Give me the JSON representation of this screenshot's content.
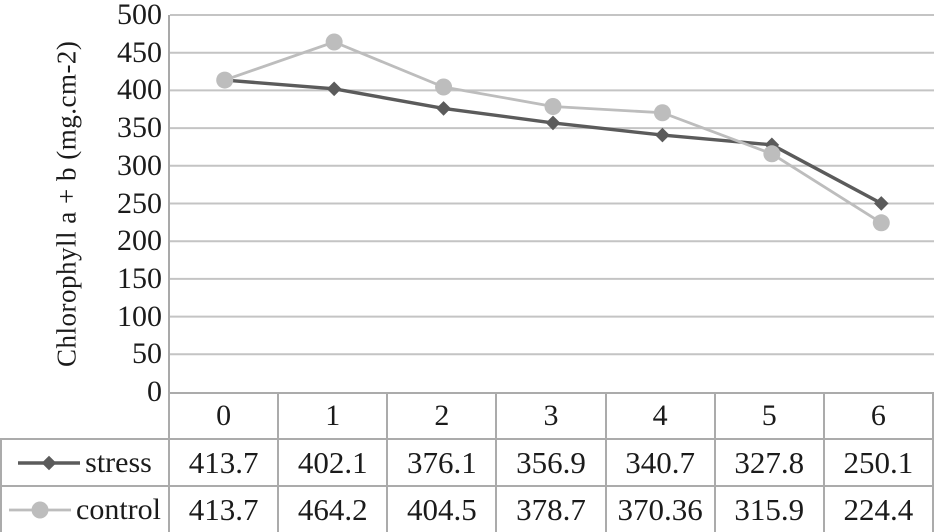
{
  "chart_data": {
    "type": "line",
    "title": "",
    "xlabel": "",
    "ylabel": "Chlorophyll a + b (mg.cm-2)",
    "ylim": [
      0,
      500
    ],
    "ytick_step": 50,
    "yticks": [
      500,
      450,
      400,
      350,
      300,
      250,
      200,
      150,
      100,
      50,
      0
    ],
    "grid": "horizontal",
    "legend_position": "table-left",
    "categories": [
      "0",
      "1",
      "2",
      "3",
      "4",
      "5",
      "6"
    ],
    "series": [
      {
        "name": "stress",
        "values": [
          413.7,
          402.1,
          376.1,
          356.9,
          340.7,
          327.8,
          250.1
        ],
        "display_values": [
          "413.7",
          "402.1",
          "376.1",
          "356.9",
          "340.7",
          "327.8",
          "250.1"
        ],
        "color": "#5b5b5b",
        "marker": "diamond",
        "line_width": 3.4
      },
      {
        "name": "control",
        "values": [
          413.7,
          464.2,
          404.5,
          378.7,
          370.36,
          315.9,
          224.4
        ],
        "display_values": [
          "413.7",
          "464.2",
          "404.5",
          "378.7",
          "370.36",
          "315.9",
          "224.4"
        ],
        "color": "#bdbdbd",
        "marker": "circle",
        "line_width": 2.8
      }
    ]
  },
  "colors": {
    "background": "#ffffff",
    "text": "#1b1b1b",
    "gridline": "#c4c4c4",
    "axis_line": "#a9a9a9",
    "table_border": "#ababab"
  }
}
